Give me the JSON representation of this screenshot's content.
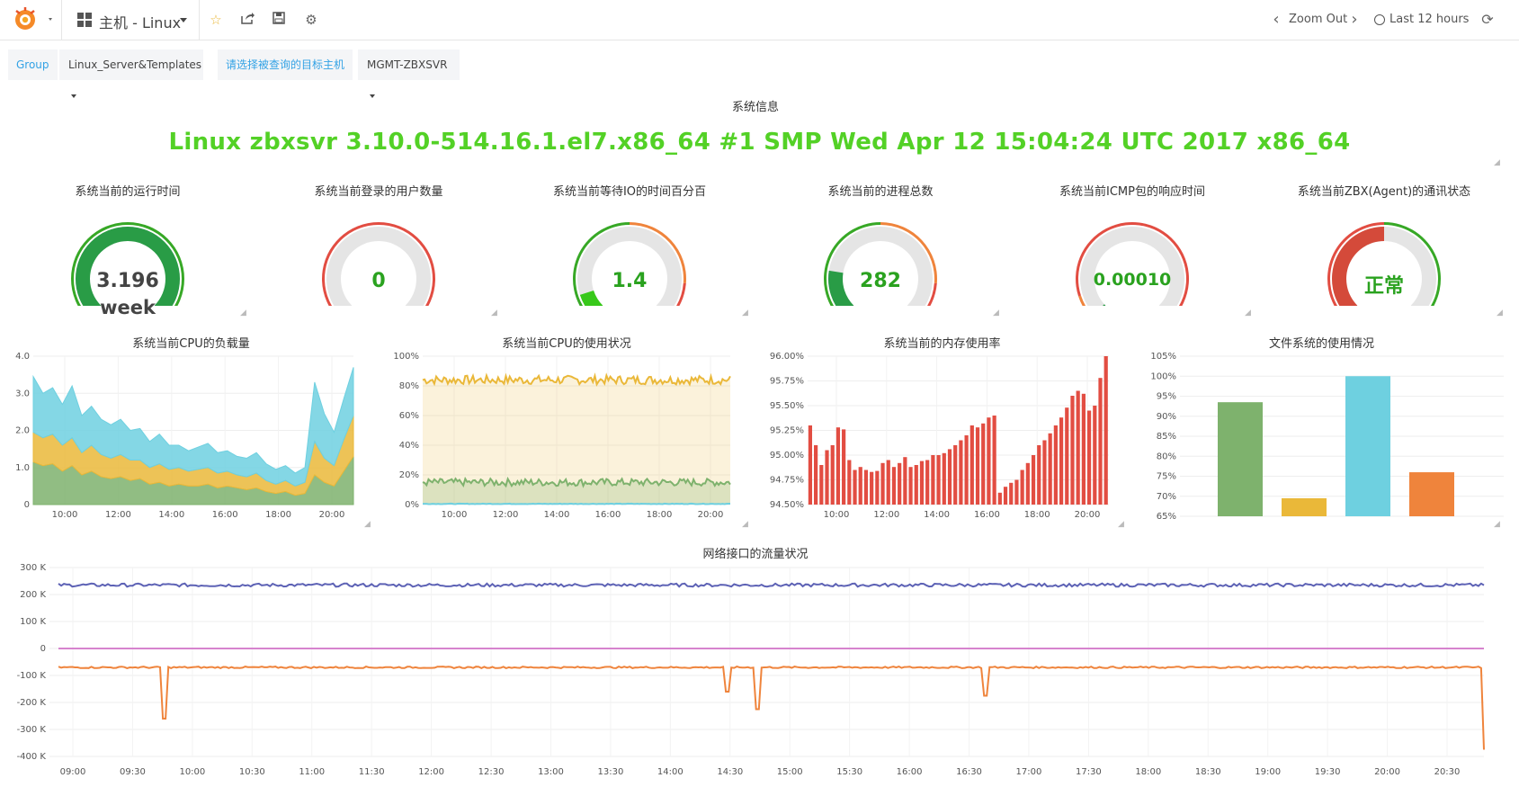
{
  "topbar": {
    "dashboard_title": "主机 - Linux",
    "zoom_out_label": "Zoom Out",
    "time_range_label": "Last 12 hours"
  },
  "variables": [
    {
      "label": "Group",
      "value": "Linux_Server&Templates"
    },
    {
      "label": "请选择被查询的目标主机",
      "value": "MGMT-ZBXSVR"
    }
  ],
  "panels": {
    "sysinfo": {
      "title": "系统信息",
      "text": "Linux zbxsvr 3.10.0-514.16.1.el7.x86_64 #1 SMP Wed Apr 12 15:04:24 UTC 2017 x86_64"
    },
    "gauges": [
      {
        "title": "系统当前的运行时间",
        "value": "3.196",
        "unit": "week",
        "fill": 1.0,
        "color": "#299c46"
      },
      {
        "title": "系统当前登录的用户数量",
        "value": "0",
        "unit": "",
        "fill": 0.0,
        "color": "#299c46"
      },
      {
        "title": "系统当前等待IO的时间百分百",
        "value": "1.4",
        "unit": "",
        "fill": 0.1,
        "color": "#37c81a"
      },
      {
        "title": "系统当前的进程总数",
        "value": "282",
        "unit": "",
        "fill": 0.2,
        "color": "#299c46"
      },
      {
        "title": "系统当前ICMP包的响应时间",
        "value": "0.00010",
        "unit": "",
        "fill": 0.01,
        "color": "#299c46"
      },
      {
        "title": "系统当前ZBX(Agent)的通讯状态",
        "value": "正常",
        "unit": "",
        "fill": 0.5,
        "color": "#d44a3a"
      }
    ]
  },
  "colors": {
    "accent": "#33a2e5",
    "green_text": "#53d126",
    "gauge_green": "#37a826",
    "gauge_red": "#e24d42",
    "gauge_orange": "#ef843c"
  },
  "chart_data": [
    {
      "type": "area",
      "title": "系统当前CPU的负载量",
      "x_ticks": [
        "10:00",
        "12:00",
        "14:00",
        "16:00",
        "18:00",
        "20:00"
      ],
      "y_ticks": [
        "0",
        "1.0",
        "2.0",
        "3.0",
        "4.0"
      ],
      "ylim": [
        0,
        4
      ],
      "stacked": true,
      "series": [
        {
          "color": "#7eb26d",
          "values": [
            1.15,
            1.05,
            1.1,
            0.9,
            1.05,
            0.8,
            0.9,
            0.75,
            0.7,
            0.75,
            0.65,
            0.7,
            0.55,
            0.6,
            0.5,
            0.55,
            0.5,
            0.5,
            0.55,
            0.45,
            0.5,
            0.45,
            0.4,
            0.45,
            0.35,
            0.3,
            0.35,
            0.25,
            0.3,
            0.8,
            0.6,
            0.5,
            0.9,
            1.3
          ]
        },
        {
          "color": "#eab839",
          "values": [
            0.8,
            0.75,
            0.8,
            0.7,
            0.75,
            0.6,
            0.7,
            0.6,
            0.55,
            0.6,
            0.55,
            0.5,
            0.45,
            0.5,
            0.45,
            0.45,
            0.4,
            0.45,
            0.45,
            0.4,
            0.4,
            0.35,
            0.35,
            0.4,
            0.3,
            0.25,
            0.3,
            0.25,
            0.3,
            0.9,
            0.65,
            0.55,
            0.85,
            1.1
          ]
        },
        {
          "color": "#6ed0e0",
          "values": [
            1.5,
            1.2,
            1.25,
            1.1,
            1.4,
            1.0,
            1.05,
            0.95,
            0.9,
            0.95,
            0.8,
            0.85,
            0.7,
            0.8,
            0.65,
            0.6,
            0.55,
            0.6,
            0.65,
            0.55,
            0.55,
            0.5,
            0.5,
            0.55,
            0.45,
            0.4,
            0.4,
            0.35,
            0.4,
            1.6,
            1.2,
            0.9,
            1.1,
            1.3
          ]
        }
      ]
    },
    {
      "type": "area",
      "title": "系统当前CPU的使用状况",
      "x_ticks": [
        "10:00",
        "12:00",
        "14:00",
        "16:00",
        "18:00",
        "20:00"
      ],
      "y_ticks": [
        "0%",
        "20%",
        "40%",
        "60%",
        "80%",
        "100%"
      ],
      "ylim": [
        0,
        100
      ],
      "series": [
        {
          "color": "#eab839",
          "level": 84,
          "noise": 3
        },
        {
          "color": "#7eb26d",
          "level": 15,
          "noise": 2.5
        },
        {
          "color": "#6ed0e0",
          "level": 0.5,
          "noise": 0.2
        }
      ]
    },
    {
      "type": "bar",
      "title": "系统当前的内存使用率",
      "x_ticks": [
        "10:00",
        "12:00",
        "14:00",
        "16:00",
        "18:00",
        "20:00"
      ],
      "y_ticks": [
        "94.50%",
        "94.75%",
        "95.00%",
        "95.25%",
        "95.50%",
        "95.75%",
        "96.00%"
      ],
      "ylim": [
        94.5,
        96.0
      ],
      "color": "#e24d42",
      "values": [
        95.3,
        95.1,
        94.9,
        95.05,
        95.1,
        95.28,
        95.26,
        94.95,
        94.85,
        94.88,
        94.85,
        94.83,
        94.84,
        94.92,
        94.95,
        94.88,
        94.92,
        94.98,
        94.88,
        94.9,
        94.94,
        94.95,
        95.0,
        95.0,
        95.02,
        95.06,
        95.1,
        95.15,
        95.2,
        95.3,
        95.28,
        95.32,
        95.38,
        95.4,
        94.62,
        94.68,
        94.72,
        94.75,
        94.85,
        94.92,
        95.0,
        95.1,
        95.15,
        95.22,
        95.3,
        95.38,
        95.48,
        95.6,
        95.65,
        95.62,
        95.45,
        95.5,
        95.78,
        96.0
      ]
    },
    {
      "type": "bar",
      "title": "文件系统的使用情况",
      "y_ticks": [
        "65%",
        "70%",
        "75%",
        "80%",
        "85%",
        "90%",
        "95%",
        "100%",
        "105%"
      ],
      "ylim": [
        65,
        105
      ],
      "values": [
        93.5,
        69.5,
        100,
        76
      ],
      "colors": [
        "#7eb26d",
        "#eab839",
        "#6ed0e0",
        "#ef843c"
      ]
    },
    {
      "type": "line",
      "title": "网络接口的流量状况",
      "x_ticks": [
        "09:00",
        "09:30",
        "10:00",
        "10:30",
        "11:00",
        "11:30",
        "12:00",
        "12:30",
        "13:00",
        "13:30",
        "14:00",
        "14:30",
        "15:00",
        "15:30",
        "16:00",
        "16:30",
        "17:00",
        "17:30",
        "18:00",
        "18:30",
        "19:00",
        "19:30",
        "20:00",
        "20:30"
      ],
      "y_ticks": [
        "-400 K",
        "-300 K",
        "-200 K",
        "-100 K",
        "0",
        "100 K",
        "200 K",
        "300 K"
      ],
      "ylim": [
        -400,
        300
      ],
      "series": [
        {
          "color": "#5d62b5",
          "level": 235
        },
        {
          "color": "#d683ce",
          "level": 0
        },
        {
          "color": "#ef843c",
          "level": -70
        }
      ]
    }
  ]
}
